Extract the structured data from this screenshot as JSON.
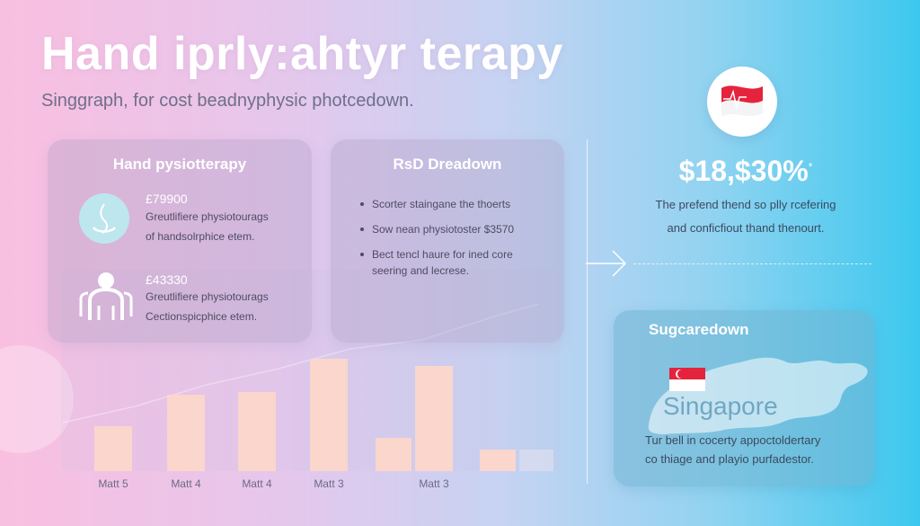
{
  "header": {
    "title": "Hand iprly:ahtyr terapy",
    "subtitle": "Singgraph, for cost beadnyphysic photcedown."
  },
  "left_card": {
    "title": "Hand pysiotterapy",
    "items": [
      {
        "price": "£79900",
        "line1": "Greutlifiere physiotourags",
        "line2": "of handsolrphice etem.",
        "icon": "hand-icon"
      },
      {
        "price": "£43330",
        "line1": "Greutlifiere physiotourags",
        "line2": "Cectionspicphice etem.",
        "icon": "people-icon"
      }
    ]
  },
  "mid_card": {
    "title": "RsD Dreadown",
    "bullets": [
      "Scorter staingane the thoerts",
      "Sow nean physiotoster $3570",
      "Bect tencl haure for ined core seering and lecrese."
    ]
  },
  "chart_data": {
    "type": "bar",
    "categories": [
      "Matt 5",
      "Matt 4",
      "Matt 4",
      "Matt 3",
      "",
      "Matt 3",
      "",
      ""
    ],
    "values": [
      50,
      85,
      88,
      125,
      37,
      117,
      24,
      24
    ],
    "ylim": [
      0,
      230
    ],
    "colors": [
      "#fad6cd",
      "#fad6cd",
      "#fad6cd",
      "#fad6cd",
      "#fad6cd",
      "#fad6cd",
      "#fad6cd",
      "#e4e0ee"
    ]
  },
  "right_panel": {
    "value": "$18,$30%",
    "value_mark": "*",
    "caption1": "The prefend thend so plly rcefering",
    "caption2": "and conficfiout thand thenourt.",
    "flag_icon": "flag-badge-icon"
  },
  "map_card": {
    "title": "Sugcaredown",
    "country": "Singapore",
    "line1": "Tur bell in cocerty appoctoldertary",
    "line2": "co thiage and playio purfadestor."
  },
  "colors": {
    "accent_red": "#e5233d",
    "bar": "#fad6cd",
    "map_card": "#70b4d2"
  }
}
